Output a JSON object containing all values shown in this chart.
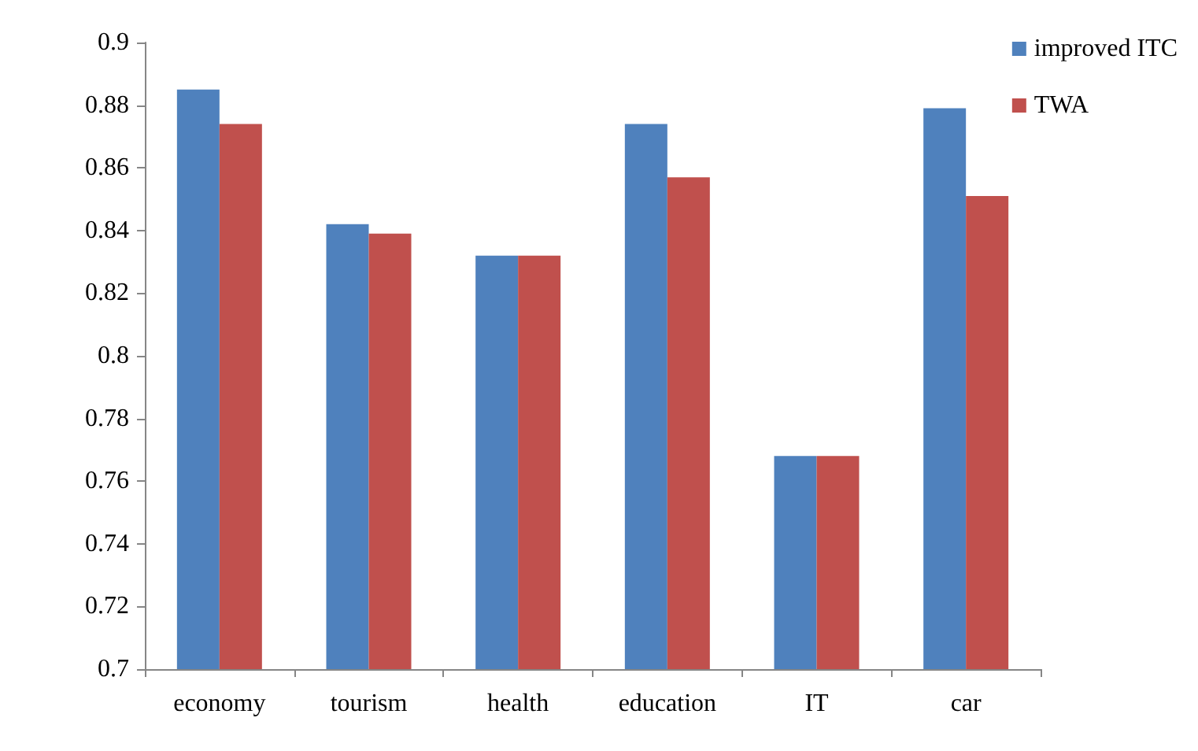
{
  "chart_data": {
    "type": "bar",
    "categories": [
      "economy",
      "tourism",
      "health",
      "education",
      "IT",
      "car"
    ],
    "series": [
      {
        "name": "improved ITC",
        "color": "#4f81bd",
        "values": [
          0.885,
          0.842,
          0.832,
          0.874,
          0.768,
          0.879
        ]
      },
      {
        "name": "TWA",
        "color": "#c0504d",
        "values": [
          0.874,
          0.839,
          0.832,
          0.857,
          0.768,
          0.851
        ]
      }
    ],
    "ylim": [
      0.7,
      0.9
    ],
    "yticks": [
      {
        "value": 0.7,
        "label": "0.7"
      },
      0.72,
      0.74,
      0.76,
      0.78,
      {
        "value": 0.8,
        "label": "0.8"
      },
      0.82,
      0.84,
      0.86,
      0.88,
      {
        "value": 0.9,
        "label": "0.9"
      }
    ],
    "grid": false,
    "legend": "top right"
  }
}
